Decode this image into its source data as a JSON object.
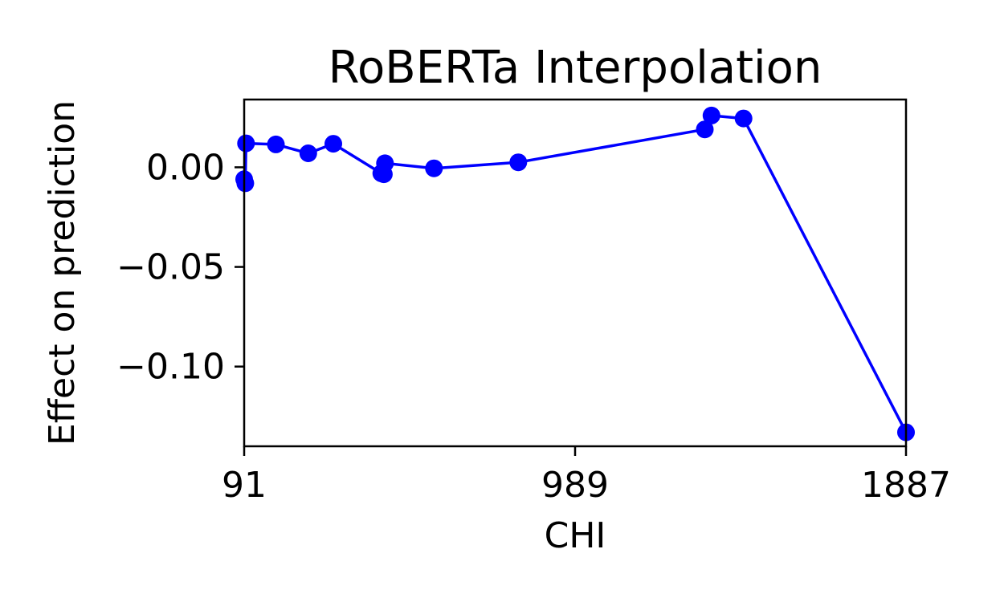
{
  "chart_data": {
    "type": "line",
    "title": "RoBERTa Interpolation",
    "xlabel": "CHI",
    "ylabel": "Effect on prediction",
    "xlim": [
      91,
      1887
    ],
    "ylim": [
      -0.14,
      0.034
    ],
    "x_ticks": [
      91,
      989,
      1887
    ],
    "x_tick_labels": [
      "91",
      "989",
      "1887"
    ],
    "y_ticks": [
      0.0,
      -0.05,
      -0.1
    ],
    "y_tick_labels": [
      "0.00",
      "−0.05",
      "−0.10"
    ],
    "grid": false,
    "legend": false,
    "series": [
      {
        "color": "#0000ff",
        "marker": "circle",
        "points": [
          {
            "x": 91,
            "y": -0.006
          },
          {
            "x": 94,
            "y": -0.008
          },
          {
            "x": 96,
            "y": 0.012
          },
          {
            "x": 177,
            "y": 0.0115
          },
          {
            "x": 265,
            "y": 0.007
          },
          {
            "x": 333,
            "y": 0.0118
          },
          {
            "x": 463,
            "y": -0.003
          },
          {
            "x": 470,
            "y": -0.0035
          },
          {
            "x": 473,
            "y": 0.002
          },
          {
            "x": 606,
            "y": -0.0005
          },
          {
            "x": 835,
            "y": 0.0025
          },
          {
            "x": 1341,
            "y": 0.019
          },
          {
            "x": 1359,
            "y": 0.026
          },
          {
            "x": 1446,
            "y": 0.0245
          },
          {
            "x": 1887,
            "y": -0.133
          }
        ]
      }
    ]
  }
}
